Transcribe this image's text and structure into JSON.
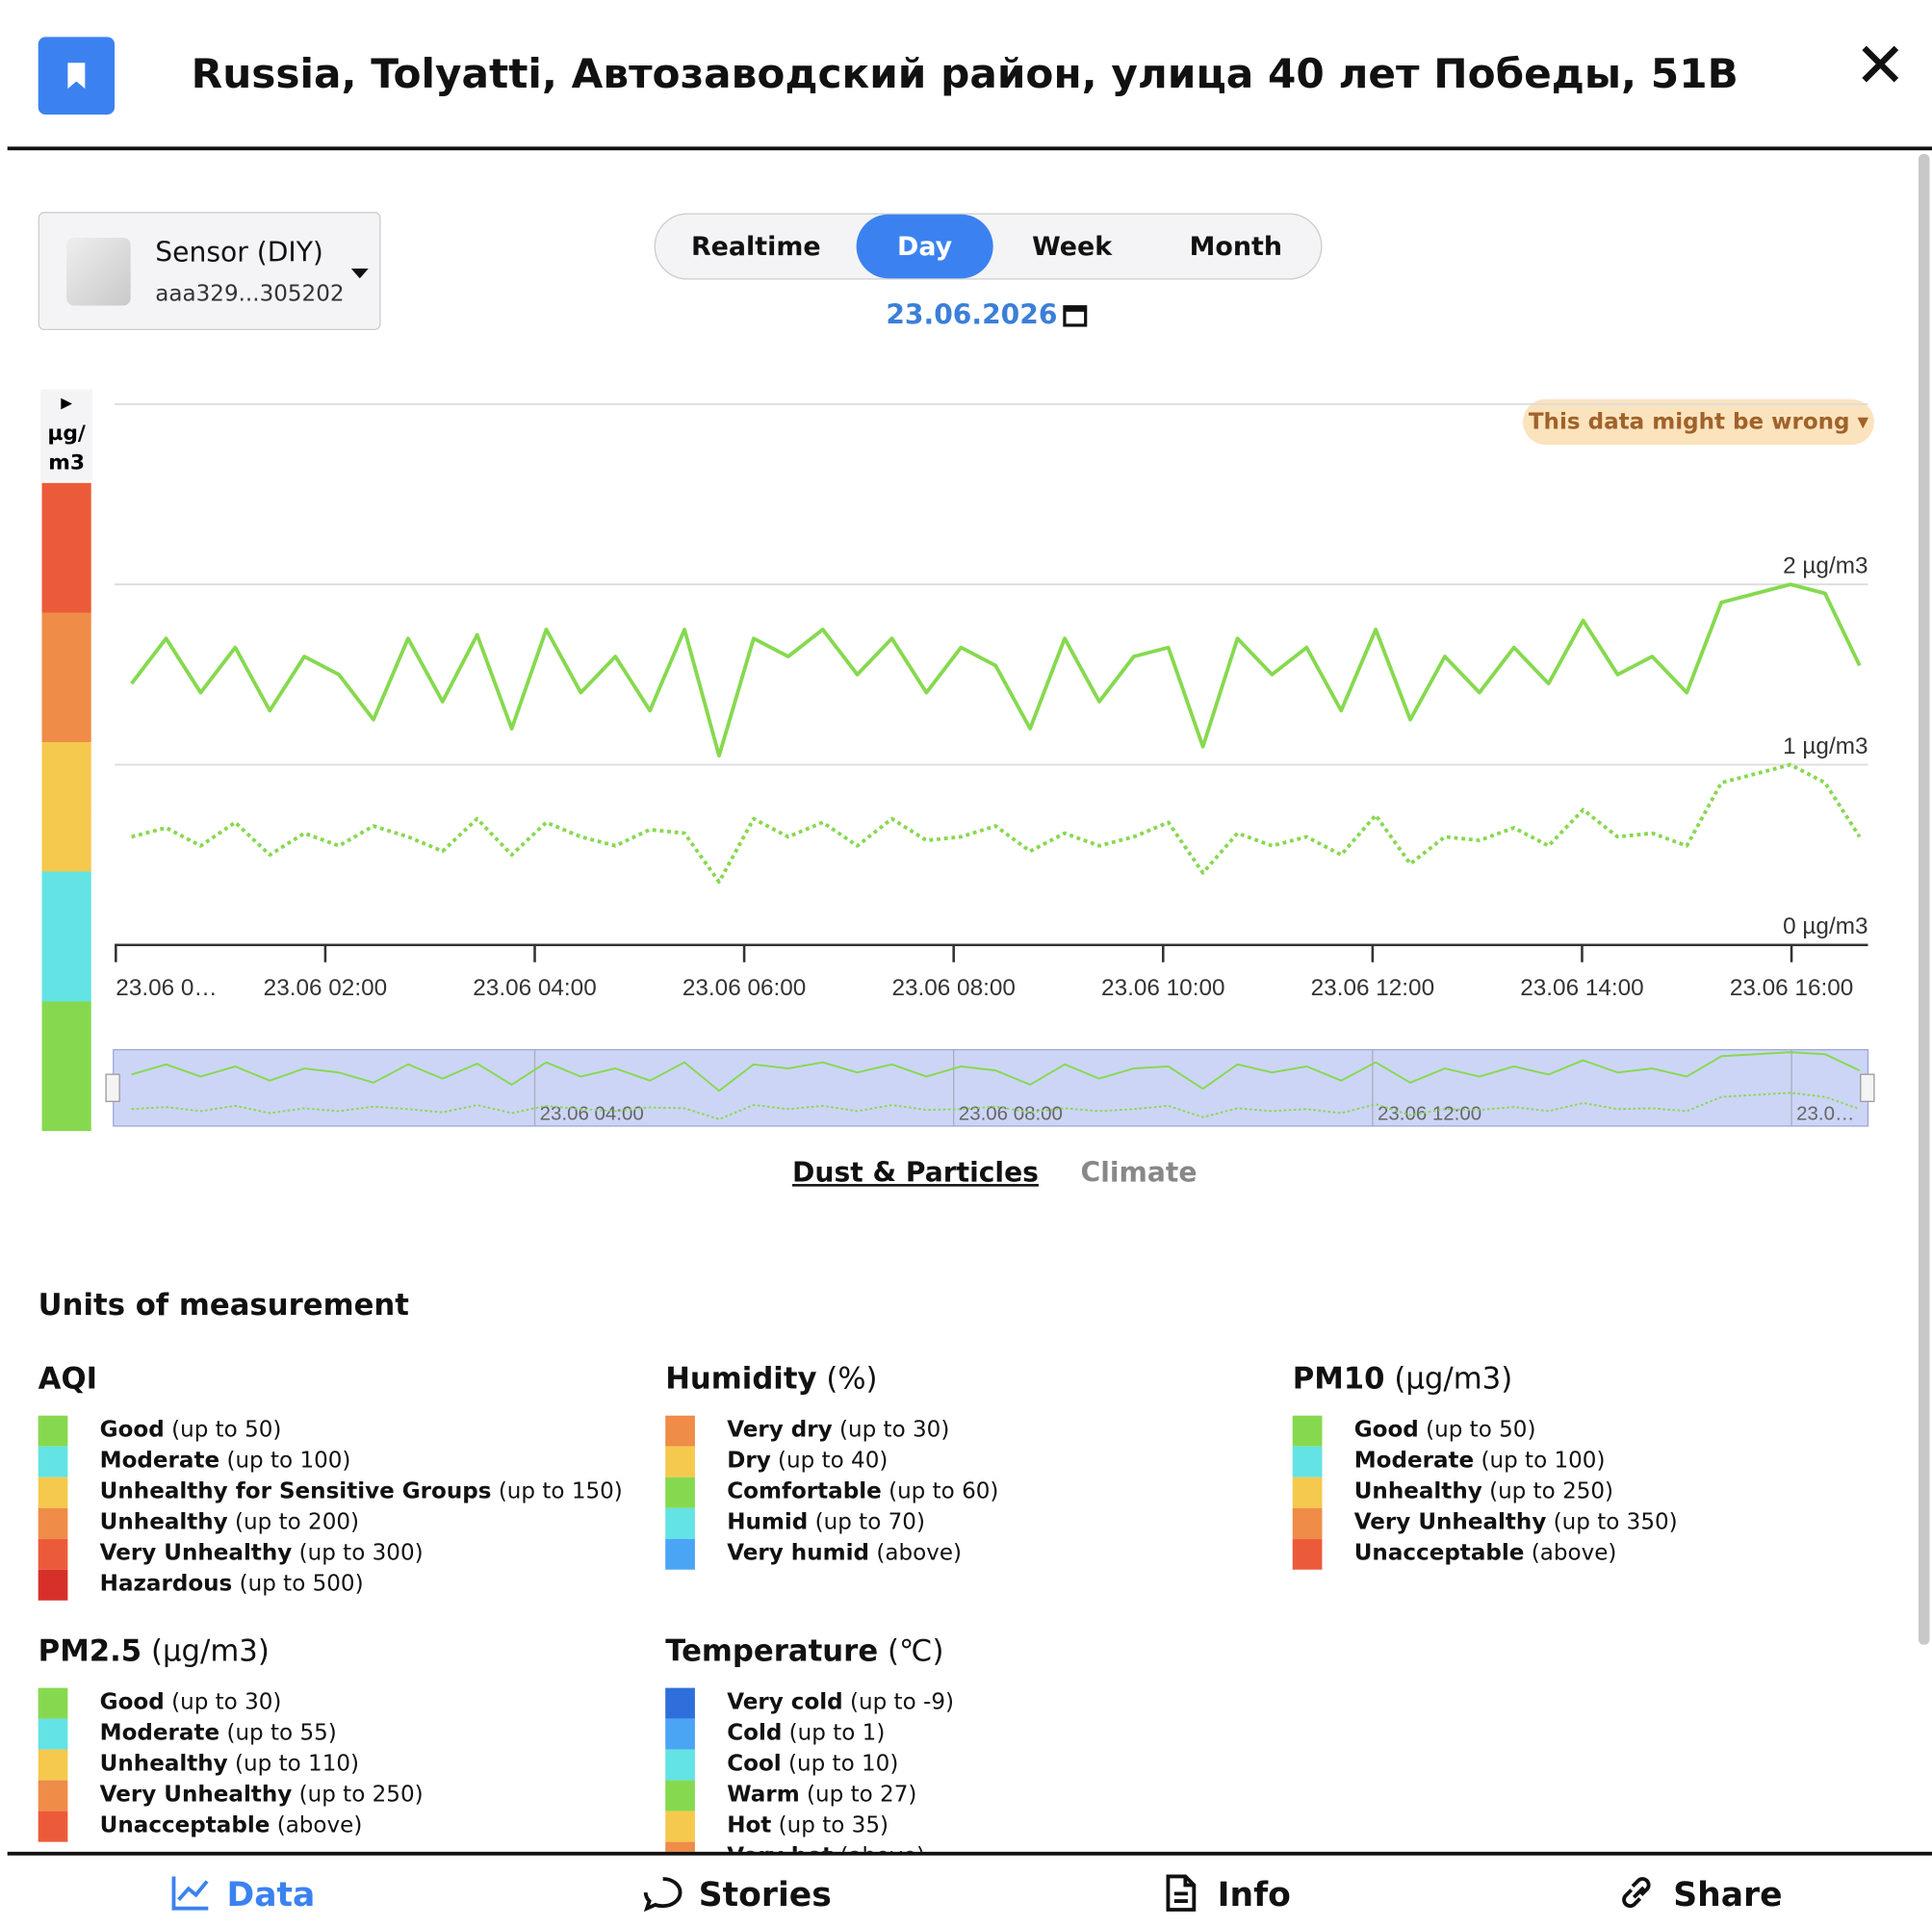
{
  "header": {
    "title": "Russia, Tolyatti, Автозаводский район, улица 40 лет Победы, 51B"
  },
  "sensor": {
    "name": "Sensor (DIY)",
    "id": "aaa329...305202"
  },
  "periods": [
    "Realtime",
    "Day",
    "Week",
    "Month"
  ],
  "active_period": "Day",
  "date": "23.06.2026",
  "warning": "This data might be wrong",
  "scale_unit": "µg/m3",
  "chart_data": {
    "type": "line",
    "x": [
      0.15,
      0.48,
      0.81,
      1.14,
      1.47,
      1.8,
      2.13,
      2.46,
      2.79,
      3.12,
      3.45,
      3.78,
      4.11,
      4.44,
      4.77,
      5.1,
      5.43,
      5.76,
      6.09,
      6.42,
      6.75,
      7.08,
      7.41,
      7.74,
      8.07,
      8.4,
      8.73,
      9.06,
      9.39,
      9.72,
      10.05,
      10.38,
      10.71,
      11.04,
      11.37,
      11.7,
      12.03,
      12.36,
      12.69,
      13.02,
      13.35,
      13.68,
      14.01,
      14.34,
      14.67,
      15.0,
      15.33,
      15.66,
      15.99,
      16.32,
      16.65
    ],
    "series": [
      {
        "color": "#86d94f",
        "style": "solid",
        "values": [
          1.45,
          1.7,
          1.4,
          1.65,
          1.3,
          1.6,
          1.5,
          1.25,
          1.7,
          1.35,
          1.72,
          1.2,
          1.75,
          1.4,
          1.6,
          1.3,
          1.75,
          1.05,
          1.7,
          1.6,
          1.75,
          1.5,
          1.7,
          1.4,
          1.65,
          1.55,
          1.2,
          1.7,
          1.35,
          1.6,
          1.65,
          1.1,
          1.7,
          1.5,
          1.65,
          1.3,
          1.75,
          1.25,
          1.6,
          1.4,
          1.65,
          1.45,
          1.8,
          1.5,
          1.6,
          1.4,
          1.9,
          1.95,
          2.0,
          1.95,
          1.55
        ]
      },
      {
        "color": "#86d94f",
        "style": "dotted",
        "values": [
          0.6,
          0.65,
          0.55,
          0.68,
          0.5,
          0.62,
          0.55,
          0.66,
          0.6,
          0.52,
          0.7,
          0.5,
          0.68,
          0.6,
          0.55,
          0.64,
          0.62,
          0.35,
          0.7,
          0.6,
          0.68,
          0.55,
          0.7,
          0.58,
          0.6,
          0.66,
          0.52,
          0.62,
          0.55,
          0.6,
          0.68,
          0.4,
          0.62,
          0.55,
          0.6,
          0.5,
          0.72,
          0.45,
          0.6,
          0.58,
          0.65,
          0.55,
          0.75,
          0.6,
          0.62,
          0.55,
          0.9,
          0.95,
          1.0,
          0.9,
          0.6
        ]
      }
    ],
    "xlim": [
      0,
      16.73
    ],
    "ylim": [
      0,
      3
    ],
    "yticks": [
      {
        "value": 0,
        "label": "0 µg/m3"
      },
      {
        "value": 1,
        "label": "1 µg/m3"
      },
      {
        "value": 2,
        "label": "2 µg/m3"
      }
    ],
    "xticks": [
      {
        "value": 0,
        "label": "23.06 0…"
      },
      {
        "value": 2,
        "label": "23.06 02:00"
      },
      {
        "value": 4,
        "label": "23.06 04:00"
      },
      {
        "value": 6,
        "label": "23.06 06:00"
      },
      {
        "value": 8,
        "label": "23.06 08:00"
      },
      {
        "value": 10,
        "label": "23.06 10:00"
      },
      {
        "value": 12,
        "label": "23.06 12:00"
      },
      {
        "value": 14,
        "label": "23.06 14:00"
      },
      {
        "value": 16,
        "label": "23.06 16:00"
      }
    ],
    "navigator_ticks": [
      {
        "value": 4,
        "label": "23.06 04:00"
      },
      {
        "value": 8,
        "label": "23.06 08:00"
      },
      {
        "value": 12,
        "label": "23.06 12:00"
      },
      {
        "value": 16,
        "label": "23.0…"
      }
    ],
    "grid": true
  },
  "data_tabs": [
    "Dust & Particles",
    "Climate"
  ],
  "active_tab": "Dust & Particles",
  "units": {
    "title": "Units of measurement",
    "groups": [
      {
        "name": "AQI",
        "items": [
          {
            "label": "Good",
            "range": "(up to 50)",
            "color": "#86d94f"
          },
          {
            "label": "Moderate",
            "range": "(up to 100)",
            "color": "#63e3e4"
          },
          {
            "label": "Unhealthy for Sensitive Groups",
            "range": "(up to 150)",
            "color": "#f5c94e"
          },
          {
            "label": "Unhealthy",
            "range": "(up to 200)",
            "color": "#ef8c47"
          },
          {
            "label": "Very Unhealthy",
            "range": "(up to 300)",
            "color": "#eb5b39"
          },
          {
            "label": "Hazardous",
            "range": "(up to 500)",
            "color": "#d7302a"
          }
        ]
      },
      {
        "name": "Humidity",
        "unit": "(%)",
        "items": [
          {
            "label": "Very dry",
            "range": "(up to 30)",
            "color": "#ef8c47"
          },
          {
            "label": "Dry",
            "range": "(up to 40)",
            "color": "#f5c94e"
          },
          {
            "label": "Comfortable",
            "range": "(up to 60)",
            "color": "#86d94f"
          },
          {
            "label": "Humid",
            "range": "(up to 70)",
            "color": "#63e3e4"
          },
          {
            "label": "Very humid",
            "range": "(above)",
            "color": "#4aa5f5"
          }
        ]
      },
      {
        "name": "PM10",
        "unit": "(µg/m3)",
        "items": [
          {
            "label": "Good",
            "range": "(up to 50)",
            "color": "#86d94f"
          },
          {
            "label": "Moderate",
            "range": "(up to 100)",
            "color": "#63e3e4"
          },
          {
            "label": "Unhealthy",
            "range": "(up to 250)",
            "color": "#f5c94e"
          },
          {
            "label": "Very Unhealthy",
            "range": "(up to 350)",
            "color": "#ef8c47"
          },
          {
            "label": "Unacceptable",
            "range": "(above)",
            "color": "#eb5b39"
          }
        ]
      },
      {
        "name": "PM2.5",
        "unit": "(µg/m3)",
        "items": [
          {
            "label": "Good",
            "range": "(up to 30)",
            "color": "#86d94f"
          },
          {
            "label": "Moderate",
            "range": "(up to 55)",
            "color": "#63e3e4"
          },
          {
            "label": "Unhealthy",
            "range": "(up to 110)",
            "color": "#f5c94e"
          },
          {
            "label": "Very Unhealthy",
            "range": "(up to 250)",
            "color": "#ef8c47"
          },
          {
            "label": "Unacceptable",
            "range": "(above)",
            "color": "#eb5b39"
          }
        ]
      },
      {
        "name": "Temperature",
        "unit": "(℃)",
        "items": [
          {
            "label": "Very cold",
            "range": "(up to -9)",
            "color": "#2f6fdc"
          },
          {
            "label": "Cold",
            "range": "(up to 1)",
            "color": "#4aa5f5"
          },
          {
            "label": "Cool",
            "range": "(up to 10)",
            "color": "#63e3e4"
          },
          {
            "label": "Warm",
            "range": "(up to 27)",
            "color": "#86d94f"
          },
          {
            "label": "Hot",
            "range": "(up to 35)",
            "color": "#f5c94e"
          },
          {
            "label": "Very hot",
            "range": "(above)",
            "color": "#ef8c47"
          }
        ]
      }
    ]
  },
  "nav": [
    "Data",
    "Stories",
    "Info",
    "Share"
  ],
  "active_nav": "Data"
}
